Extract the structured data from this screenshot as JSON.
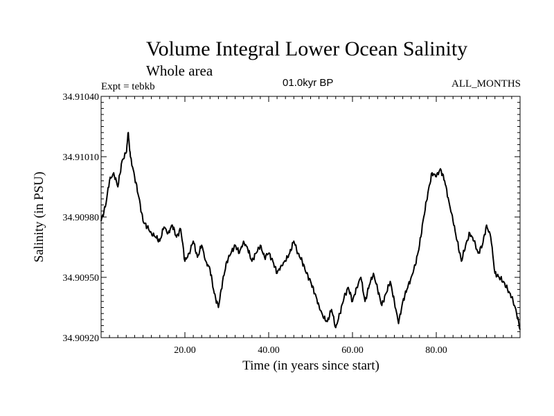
{
  "chart_data": {
    "type": "line",
    "title": "Volume Integral Lower Ocean Salinity",
    "subtitle": "Whole area",
    "experiment": "Expt = tebkb",
    "period": "01.0kyr BP",
    "months": "ALL_MONTHS",
    "xlabel": "Time (in years since start)",
    "ylabel": "Salinity (in PSU)",
    "xlim": [
      0,
      100
    ],
    "ylim": [
      34.9092,
      34.9104
    ],
    "x_ticks": [
      20,
      40,
      60,
      80
    ],
    "x_tick_labels": [
      "20.00",
      "40.00",
      "60.00",
      "80.00"
    ],
    "y_ticks": [
      34.9092,
      34.9095,
      34.9098,
      34.9101,
      34.9104
    ],
    "y_tick_labels": [
      "34.90920",
      "34.90950",
      "34.90980",
      "34.91010",
      "34.91040"
    ],
    "grid": false,
    "series": [
      {
        "name": "Salinity",
        "color": "#000000",
        "x": [
          0,
          1,
          2,
          3,
          4,
          5,
          6,
          6.5,
          7,
          8,
          9,
          10,
          11,
          12,
          13,
          14,
          15,
          16,
          17,
          18,
          19,
          20,
          21,
          22,
          23,
          24,
          25,
          26,
          27,
          28,
          29,
          30,
          31,
          32,
          33,
          34,
          35,
          36,
          37,
          38,
          39,
          40,
          41,
          42,
          43,
          44,
          45,
          46,
          47,
          48,
          49,
          50,
          51,
          52,
          53,
          54,
          55,
          56,
          57,
          58,
          59,
          60,
          61,
          62,
          63,
          64,
          65,
          66,
          67,
          68,
          69,
          70,
          71,
          72,
          73,
          74,
          75,
          76,
          77,
          78,
          79,
          80,
          81,
          82,
          83,
          84,
          85,
          86,
          87,
          88,
          89,
          90,
          91,
          92,
          93,
          94,
          95,
          96,
          97,
          98,
          99,
          100
        ],
        "values": [
          34.90978,
          34.90985,
          34.90998,
          34.91002,
          34.90995,
          34.91008,
          34.91012,
          34.91022,
          34.9101,
          34.91,
          34.9099,
          34.90978,
          34.90975,
          34.90972,
          34.9097,
          34.90968,
          34.90975,
          34.90972,
          34.90976,
          34.9097,
          34.90974,
          34.90958,
          34.90962,
          34.90968,
          34.9096,
          34.90966,
          34.90958,
          34.90954,
          34.90942,
          34.90935,
          34.90948,
          34.90958,
          34.90962,
          34.90966,
          34.90962,
          34.90968,
          34.90964,
          34.90958,
          34.90962,
          34.90966,
          34.9096,
          34.90962,
          34.90958,
          34.90952,
          34.90956,
          34.90958,
          34.90962,
          34.90968,
          34.90962,
          34.90958,
          34.90952,
          34.90948,
          34.90942,
          34.90936,
          34.9093,
          34.90928,
          34.90934,
          34.90925,
          34.90932,
          34.9094,
          34.90945,
          34.90938,
          34.90945,
          34.9095,
          34.90938,
          34.90946,
          34.90952,
          34.90944,
          34.90936,
          34.90942,
          34.90948,
          34.90938,
          34.90927,
          34.90938,
          34.90944,
          34.9095,
          34.90956,
          34.90966,
          34.9098,
          34.90992,
          34.91002,
          34.91,
          34.91004,
          34.90998,
          34.90988,
          34.90978,
          34.90968,
          34.90958,
          34.90966,
          34.90972,
          34.90968,
          34.90962,
          34.90966,
          34.90976,
          34.9097,
          34.90952,
          34.9095,
          34.90948,
          34.90944,
          34.9094,
          34.90934,
          34.90924
        ]
      }
    ]
  }
}
